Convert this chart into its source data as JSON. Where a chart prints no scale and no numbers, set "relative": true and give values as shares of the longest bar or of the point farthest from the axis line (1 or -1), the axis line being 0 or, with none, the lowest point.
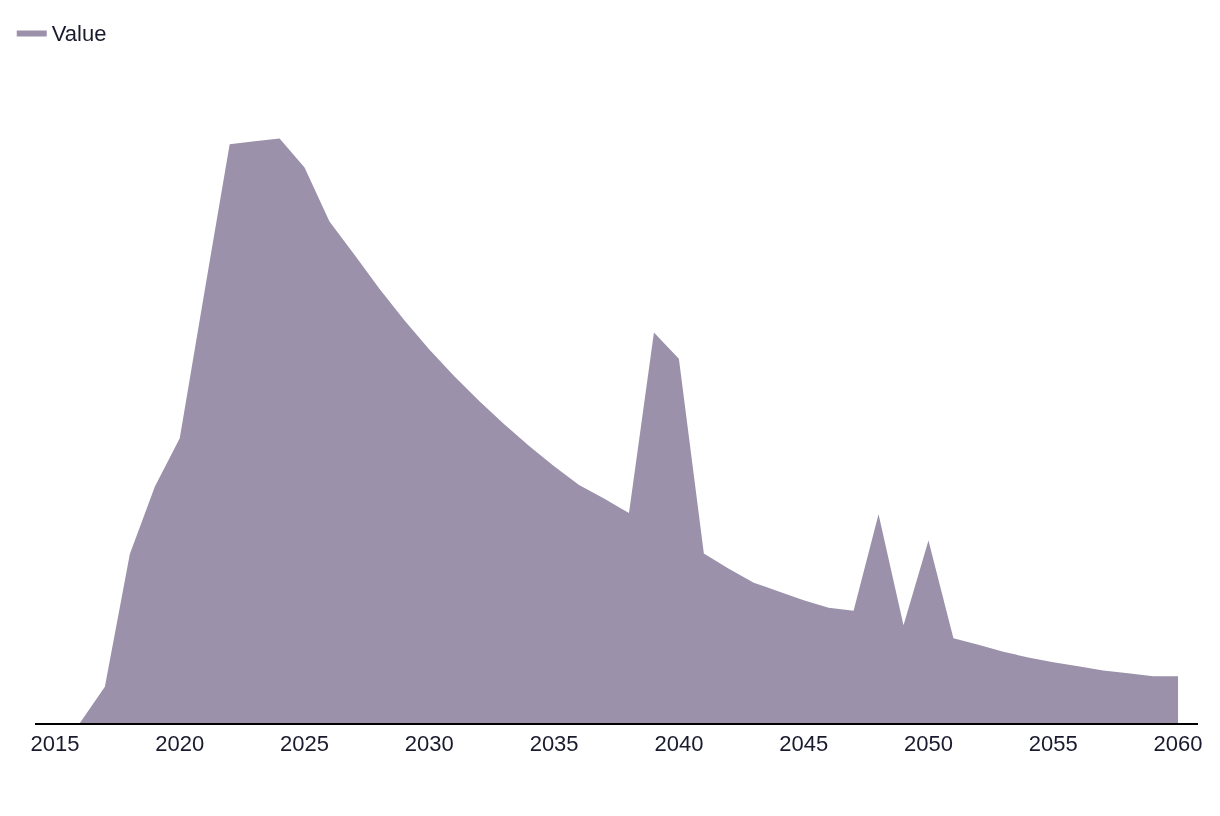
{
  "chart_data": {
    "type": "area",
    "relative": true,
    "legend": "top left",
    "x": [
      2016,
      2017,
      2018,
      2019,
      2020,
      2021,
      2022,
      2023,
      2024,
      2025,
      2026,
      2027,
      2028,
      2029,
      2030,
      2031,
      2032,
      2033,
      2034,
      2035,
      2036,
      2037,
      2038,
      2039,
      2040,
      2041,
      2042,
      2043,
      2044,
      2045,
      2046,
      2047,
      2048,
      2049,
      2050,
      2051,
      2052,
      2053,
      2054,
      2055,
      2056,
      2057,
      2058,
      2059,
      2060
    ],
    "xlim": [
      2014.2,
      2060.8
    ],
    "xticks": [
      2015,
      2020,
      2025,
      2030,
      2035,
      2040,
      2045,
      2050,
      2055,
      2060
    ],
    "series": [
      {
        "name": "Value",
        "color": "#9b91aa",
        "values": [
          0,
          0.062,
          0.289,
          0.404,
          0.487,
          0.74,
          0.99,
          0.995,
          1,
          0.95,
          0.858,
          0.801,
          0.743,
          0.689,
          0.639,
          0.593,
          0.551,
          0.511,
          0.474,
          0.439,
          0.407,
          0.384,
          0.359,
          0.668,
          0.623,
          0.29,
          0.264,
          0.24,
          0.225,
          0.21,
          0.197,
          0.192,
          0.357,
          0.167,
          0.312,
          0.145,
          0.134,
          0.122,
          0.112,
          0.104,
          0.097,
          0.09,
          0.085,
          0.08,
          0.08
        ]
      }
    ]
  }
}
